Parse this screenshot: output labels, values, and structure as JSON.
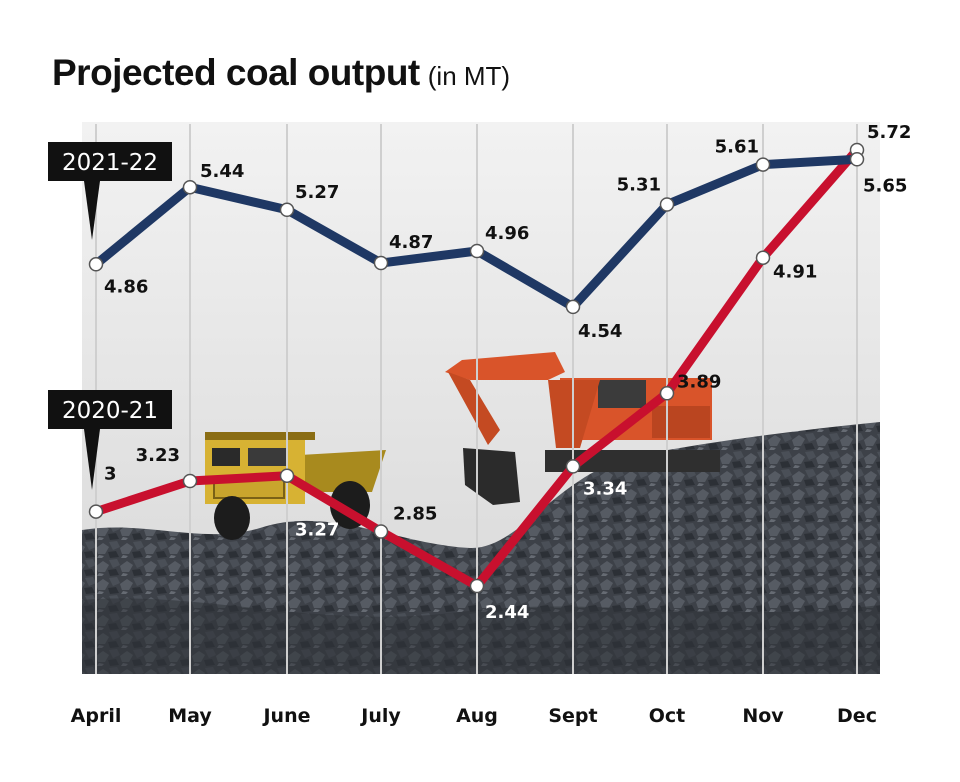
{
  "header": {
    "title": "Projected coal output",
    "unit": "(in MT)"
  },
  "chart_data": {
    "type": "line",
    "title": "Projected coal output",
    "unit": "(in MT)",
    "categories": [
      "April",
      "May",
      "June",
      "July",
      "Aug",
      "Sept",
      "Oct",
      "Nov",
      "Dec"
    ],
    "series": [
      {
        "name": "2021-22",
        "color": "#1f3864",
        "values": [
          4.86,
          5.44,
          5.27,
          4.87,
          4.96,
          4.54,
          5.31,
          5.61,
          5.65
        ],
        "labels": [
          "4.86",
          "5.44",
          "5.27",
          "4.87",
          "4.96",
          "4.54",
          "5.31",
          "5.61",
          "5.65"
        ]
      },
      {
        "name": "2020-21",
        "color": "#c8102e",
        "values": [
          3,
          3.23,
          3.27,
          2.85,
          2.44,
          3.34,
          3.89,
          4.91,
          5.72
        ],
        "labels": [
          "3",
          "3.23",
          "3.27",
          "2.85",
          "2.44",
          "3.34",
          "3.89",
          "4.91",
          "5.72"
        ]
      }
    ],
    "grid": "vertical lines at each month",
    "legend": "tags at left"
  }
}
